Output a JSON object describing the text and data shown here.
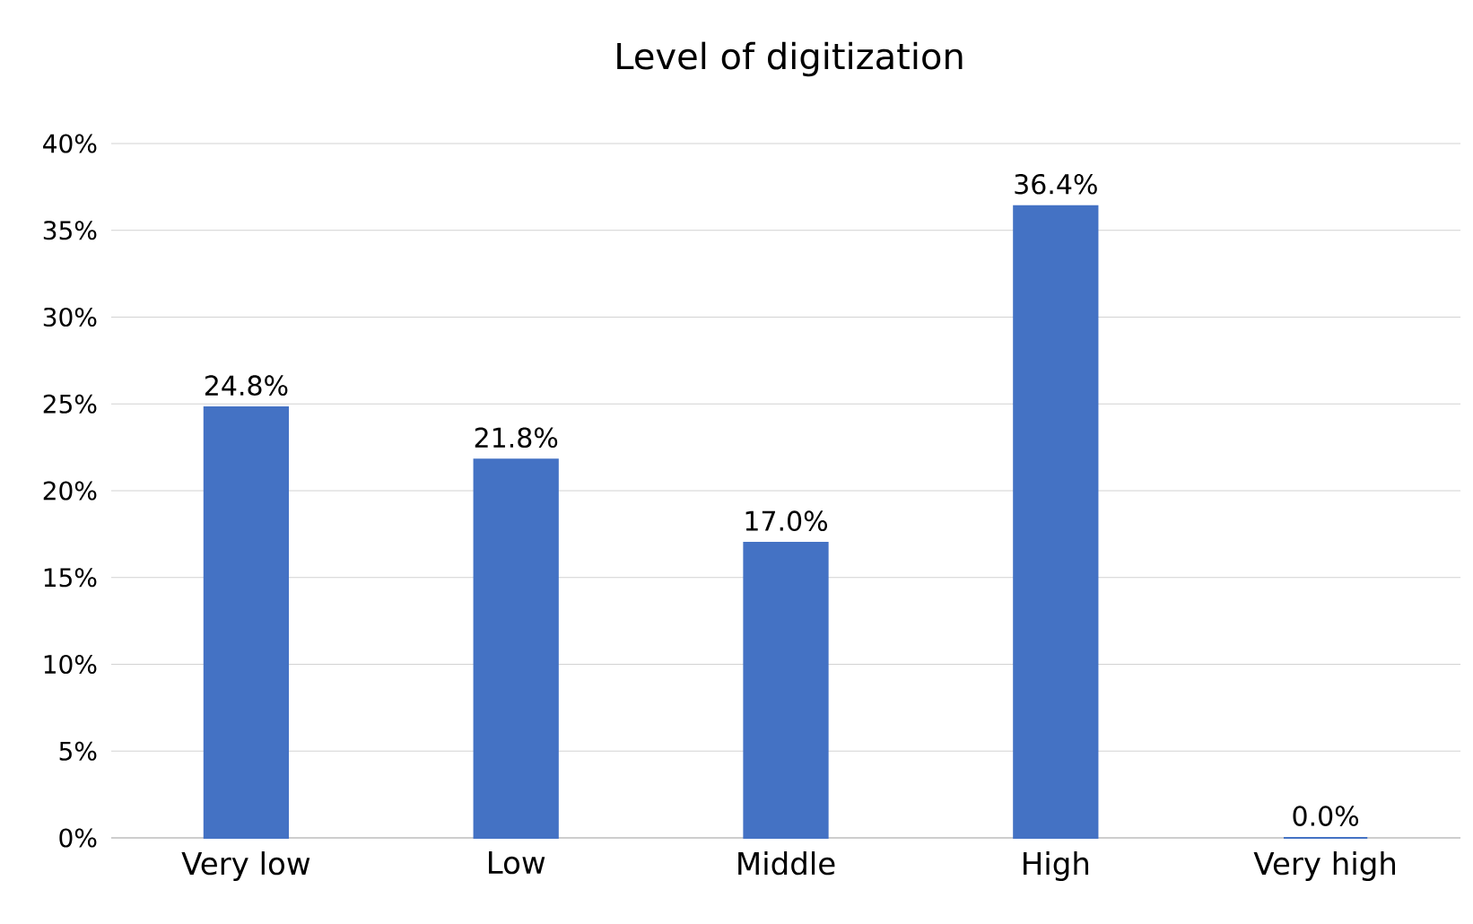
{
  "chart_data": {
    "type": "bar",
    "title": "Level of digitization",
    "categories": [
      "Very low",
      "Low",
      "Middle",
      "High",
      "Very high"
    ],
    "values": [
      24.8,
      21.8,
      17.0,
      36.4,
      0.0
    ],
    "value_labels": [
      "24.8%",
      "21.8%",
      "17.0%",
      "36.4%",
      "0.0%"
    ],
    "color": "#4472c4",
    "ylim": [
      0,
      40
    ],
    "yticks": [
      {
        "value": 0,
        "label": "0%"
      },
      {
        "value": 5,
        "label": "5%"
      },
      {
        "value": 10,
        "label": "10%"
      },
      {
        "value": 15,
        "label": "15%"
      },
      {
        "value": 20,
        "label": "20%"
      },
      {
        "value": 25,
        "label": "25%"
      },
      {
        "value": 30,
        "label": "30%"
      },
      {
        "value": 35,
        "label": "35%"
      },
      {
        "value": 40,
        "label": "40%"
      }
    ],
    "grid": "y"
  }
}
